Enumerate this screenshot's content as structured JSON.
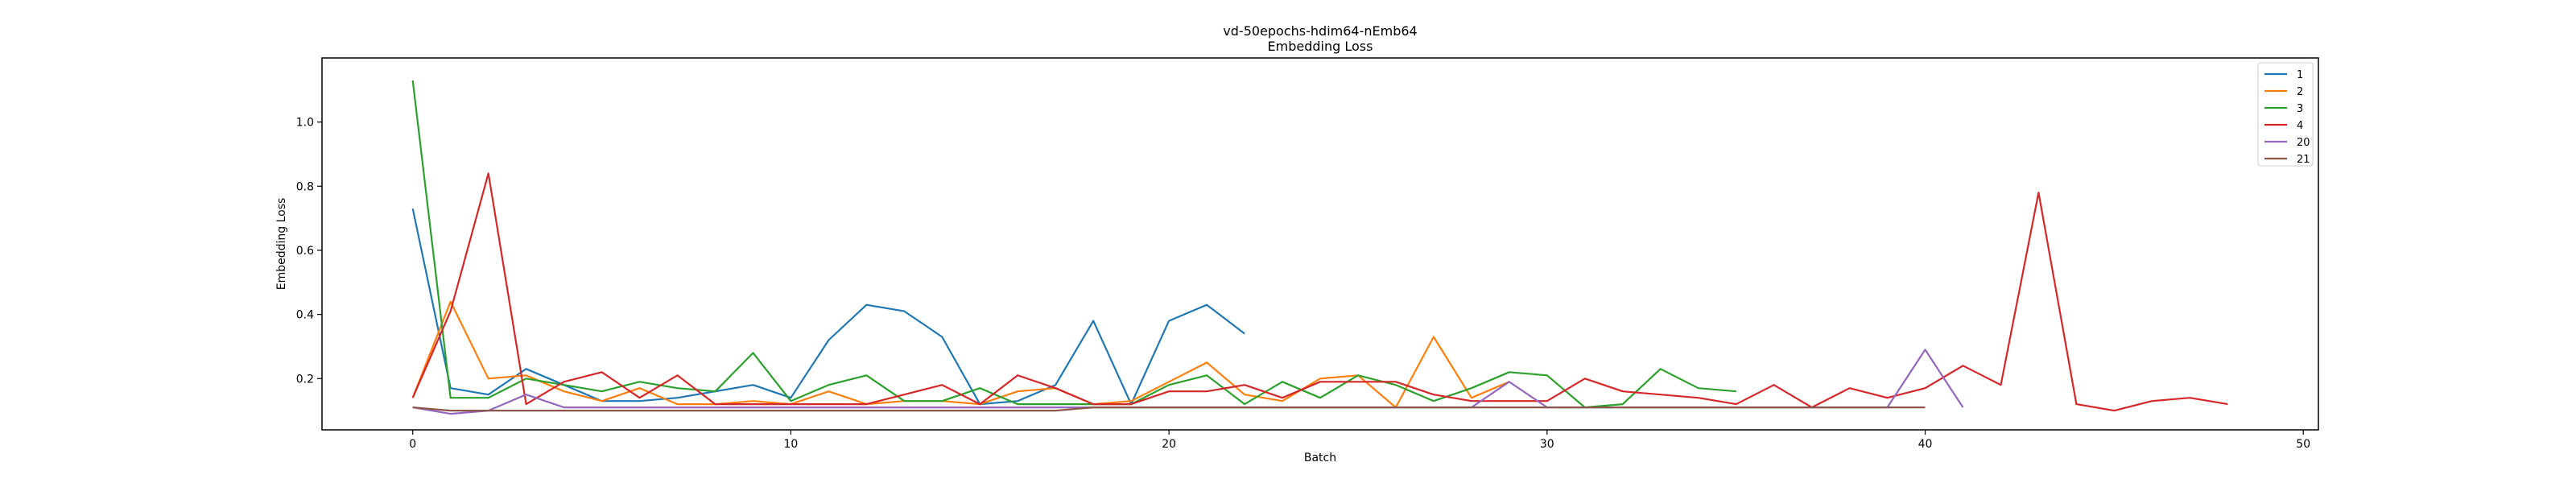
{
  "chart_data": {
    "type": "line",
    "title": "vd-50epochs-hdim64-nEmb64",
    "subtitle": "Embedding Loss",
    "xlabel": "Batch",
    "ylabel": "Embedding Loss",
    "xlim": [
      -2.4,
      50.4
    ],
    "ylim": [
      0.04,
      1.2
    ],
    "xticks": [
      0,
      10,
      20,
      30,
      40,
      50
    ],
    "yticks": [
      0.2,
      0.4,
      0.6,
      0.8,
      1.0
    ],
    "ytick_labels": [
      "0.2",
      "0.4",
      "0.6",
      "0.8",
      "1.0"
    ],
    "grid": false,
    "legend_position": "top-right",
    "series": [
      {
        "name": "1",
        "color": "#1f77b4",
        "x": [
          0,
          1,
          2,
          3,
          4,
          5,
          6,
          7,
          8,
          9,
          10,
          11,
          12,
          13,
          14,
          15,
          16,
          17,
          18,
          19,
          20,
          21,
          22
        ],
        "values": [
          0.73,
          0.17,
          0.15,
          0.23,
          0.18,
          0.13,
          0.13,
          0.14,
          0.16,
          0.18,
          0.14,
          0.32,
          0.43,
          0.41,
          0.33,
          0.12,
          0.13,
          0.18,
          0.38,
          0.12,
          0.38,
          0.43,
          0.34
        ]
      },
      {
        "name": "2",
        "color": "#ff7f0e",
        "x": [
          0,
          1,
          2,
          3,
          4,
          5,
          6,
          7,
          8,
          9,
          10,
          11,
          12,
          13,
          14,
          15,
          16,
          17,
          18,
          19,
          20,
          21,
          22,
          23,
          24,
          25,
          26,
          27,
          28,
          29
        ],
        "values": [
          0.14,
          0.44,
          0.2,
          0.21,
          0.16,
          0.13,
          0.17,
          0.12,
          0.12,
          0.13,
          0.12,
          0.16,
          0.12,
          0.13,
          0.13,
          0.12,
          0.16,
          0.17,
          0.12,
          0.13,
          0.19,
          0.25,
          0.15,
          0.13,
          0.2,
          0.21,
          0.11,
          0.33,
          0.14,
          0.19
        ]
      },
      {
        "name": "3",
        "color": "#2ca02c",
        "x": [
          0,
          1,
          2,
          3,
          4,
          5,
          6,
          7,
          8,
          9,
          10,
          11,
          12,
          13,
          14,
          15,
          16,
          17,
          18,
          19,
          20,
          21,
          22,
          23,
          24,
          25,
          26,
          27,
          28,
          29,
          30,
          31,
          32,
          33,
          34,
          35
        ],
        "values": [
          1.13,
          0.14,
          0.14,
          0.2,
          0.18,
          0.16,
          0.19,
          0.17,
          0.16,
          0.28,
          0.13,
          0.18,
          0.21,
          0.13,
          0.13,
          0.17,
          0.12,
          0.12,
          0.12,
          0.12,
          0.18,
          0.21,
          0.12,
          0.19,
          0.14,
          0.21,
          0.18,
          0.13,
          0.17,
          0.22,
          0.21,
          0.11,
          0.12,
          0.23,
          0.17,
          0.16
        ]
      },
      {
        "name": "4",
        "color": "#d62728",
        "x": [
          0,
          1,
          2,
          3,
          4,
          5,
          6,
          7,
          8,
          9,
          10,
          11,
          12,
          13,
          14,
          15,
          16,
          17,
          18,
          19,
          20,
          21,
          22,
          23,
          24,
          25,
          26,
          27,
          28,
          29,
          30,
          31,
          32,
          33,
          34,
          35,
          36,
          37,
          38,
          39,
          40,
          41,
          42,
          43,
          44,
          45,
          46,
          47,
          48
        ],
        "values": [
          0.14,
          0.41,
          0.84,
          0.12,
          0.19,
          0.22,
          0.14,
          0.21,
          0.12,
          0.12,
          0.12,
          0.12,
          0.12,
          0.15,
          0.18,
          0.12,
          0.21,
          0.17,
          0.12,
          0.12,
          0.16,
          0.16,
          0.18,
          0.14,
          0.19,
          0.19,
          0.19,
          0.15,
          0.13,
          0.13,
          0.13,
          0.2,
          0.16,
          0.15,
          0.14,
          0.12,
          0.18,
          0.11,
          0.17,
          0.14,
          0.17,
          0.24,
          0.18,
          0.78,
          0.12,
          0.1,
          0.13,
          0.14,
          0.12
        ]
      },
      {
        "name": "20",
        "color": "#9467bd",
        "x": [
          0,
          1,
          2,
          3,
          4,
          5,
          6,
          7,
          8,
          9,
          10,
          11,
          12,
          13,
          14,
          15,
          16,
          17,
          18,
          19,
          20,
          21,
          22,
          23,
          24,
          25,
          26,
          27,
          28,
          29,
          30,
          31,
          32,
          33,
          34,
          35,
          36,
          37,
          38,
          39,
          40,
          41
        ],
        "values": [
          0.11,
          0.09,
          0.1,
          0.15,
          0.11,
          0.11,
          0.11,
          0.11,
          0.11,
          0.11,
          0.11,
          0.11,
          0.11,
          0.11,
          0.11,
          0.11,
          0.11,
          0.11,
          0.11,
          0.11,
          0.11,
          0.11,
          0.11,
          0.11,
          0.11,
          0.11,
          0.11,
          0.11,
          0.11,
          0.19,
          0.11,
          0.11,
          0.11,
          0.11,
          0.11,
          0.11,
          0.11,
          0.11,
          0.11,
          0.11,
          0.29,
          0.11
        ]
      },
      {
        "name": "21",
        "color": "#8c564b",
        "x": [
          0,
          1,
          2,
          3,
          4,
          5,
          6,
          7,
          8,
          9,
          10,
          11,
          12,
          13,
          14,
          15,
          16,
          17,
          18,
          19,
          20,
          21,
          22,
          23,
          24,
          25,
          26,
          27,
          28,
          29,
          30,
          31,
          32,
          33,
          34,
          35,
          36,
          37,
          38,
          39,
          40
        ],
        "values": [
          0.11,
          0.1,
          0.1,
          0.1,
          0.1,
          0.1,
          0.1,
          0.1,
          0.1,
          0.1,
          0.1,
          0.1,
          0.1,
          0.1,
          0.1,
          0.1,
          0.1,
          0.1,
          0.11,
          0.11,
          0.11,
          0.11,
          0.11,
          0.11,
          0.11,
          0.11,
          0.11,
          0.11,
          0.11,
          0.11,
          0.11,
          0.11,
          0.11,
          0.11,
          0.11,
          0.11,
          0.11,
          0.11,
          0.11,
          0.11,
          0.11
        ]
      }
    ]
  }
}
